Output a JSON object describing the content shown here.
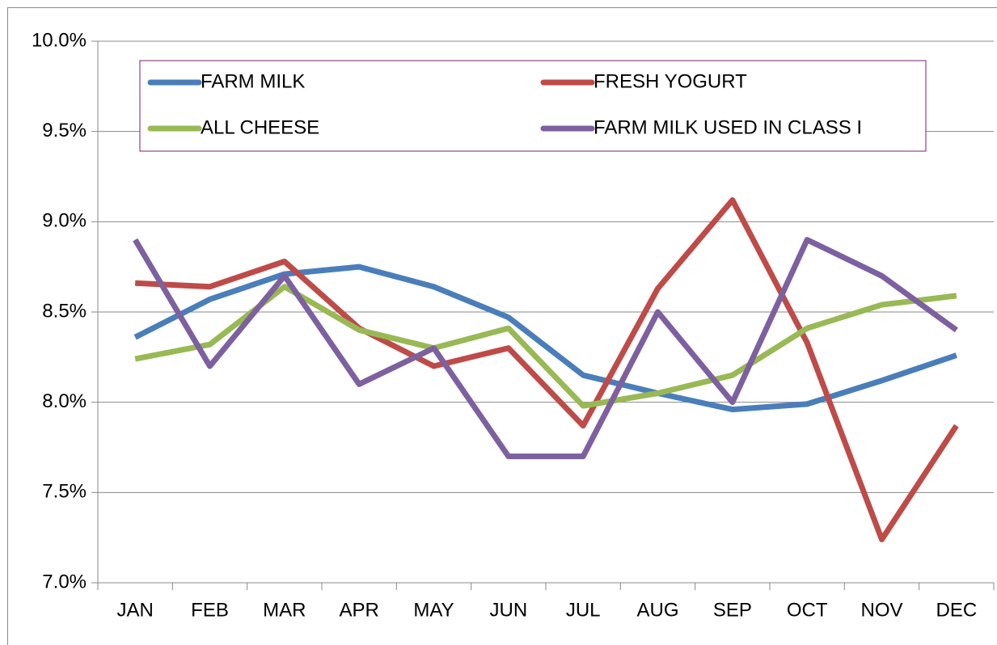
{
  "chart_data": {
    "type": "line",
    "categories": [
      "JAN",
      "FEB",
      "MAR",
      "APR",
      "MAY",
      "JUN",
      "JUL",
      "AUG",
      "SEP",
      "OCT",
      "NOV",
      "DEC"
    ],
    "series": [
      {
        "name": "FARM MILK",
        "color": "#4a7ebb",
        "values": [
          8.36,
          8.57,
          8.71,
          8.75,
          8.64,
          8.47,
          8.15,
          8.05,
          7.96,
          7.99,
          8.12,
          8.26
        ]
      },
      {
        "name": "FRESH YOGURT",
        "color": "#be4b48",
        "values": [
          8.66,
          8.64,
          8.78,
          8.41,
          8.2,
          8.3,
          7.87,
          8.63,
          9.12,
          8.33,
          7.24,
          7.87
        ]
      },
      {
        "name": "ALL CHEESE",
        "color": "#98b954",
        "values": [
          8.24,
          8.32,
          8.64,
          8.4,
          8.3,
          8.41,
          7.98,
          8.05,
          8.15,
          8.41,
          8.54,
          8.59
        ]
      },
      {
        "name": "FARM MILK USED IN CLASS I",
        "color": "#7d60a0",
        "values": [
          8.9,
          8.2,
          8.7,
          8.1,
          8.3,
          7.7,
          7.7,
          8.5,
          8.0,
          8.9,
          8.7,
          8.4
        ]
      }
    ],
    "ylim": [
      7,
      10
    ],
    "yticks": [
      {
        "value": 7,
        "label": "7.0%"
      },
      {
        "value": 7.5,
        "label": "7.5%"
      },
      {
        "value": 8,
        "label": "8.0%"
      },
      {
        "value": 8.5,
        "label": "8.5%"
      },
      {
        "value": 9,
        "label": "9.0%"
      },
      {
        "value": 9.5,
        "label": "9.5%"
      },
      {
        "value": 10,
        "label": "10.0%"
      }
    ],
    "grid": true,
    "legend": "top"
  }
}
